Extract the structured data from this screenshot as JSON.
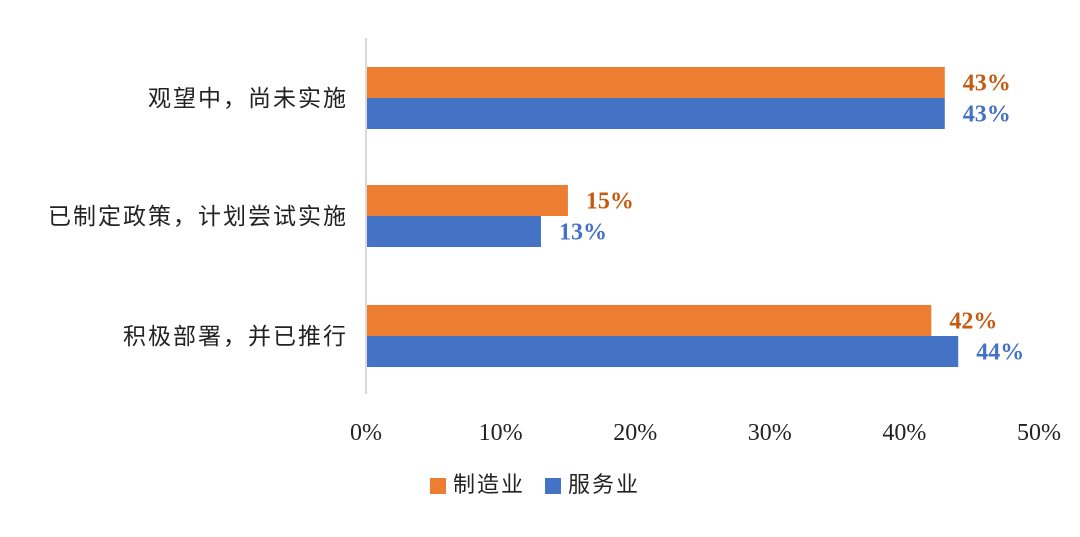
{
  "chart_data": {
    "type": "bar",
    "orientation": "horizontal",
    "categories": [
      "观望中，尚未实施",
      "已制定政策，计划尝试实施",
      "积极部署，并已推行"
    ],
    "series": [
      {
        "name": "制造业",
        "color": "#ED7D31",
        "values": [
          43,
          15,
          42
        ],
        "labels": [
          "43%",
          "15%",
          "42%"
        ]
      },
      {
        "name": "服务业",
        "color": "#4472C4",
        "values": [
          43,
          13,
          44
        ],
        "labels": [
          "43%",
          "13%",
          "44%"
        ]
      }
    ],
    "xlim": [
      0,
      50
    ],
    "xticks": [
      0,
      10,
      20,
      30,
      40,
      50
    ],
    "xtick_labels": [
      "0%",
      "10%",
      "20%",
      "30%",
      "40%",
      "50%"
    ],
    "grid": false,
    "legend_position": "bottom",
    "axis_color": "#D9D9D9",
    "label_colors": {
      "制造业": "#C55A11",
      "服务业": "#4472C4"
    }
  }
}
